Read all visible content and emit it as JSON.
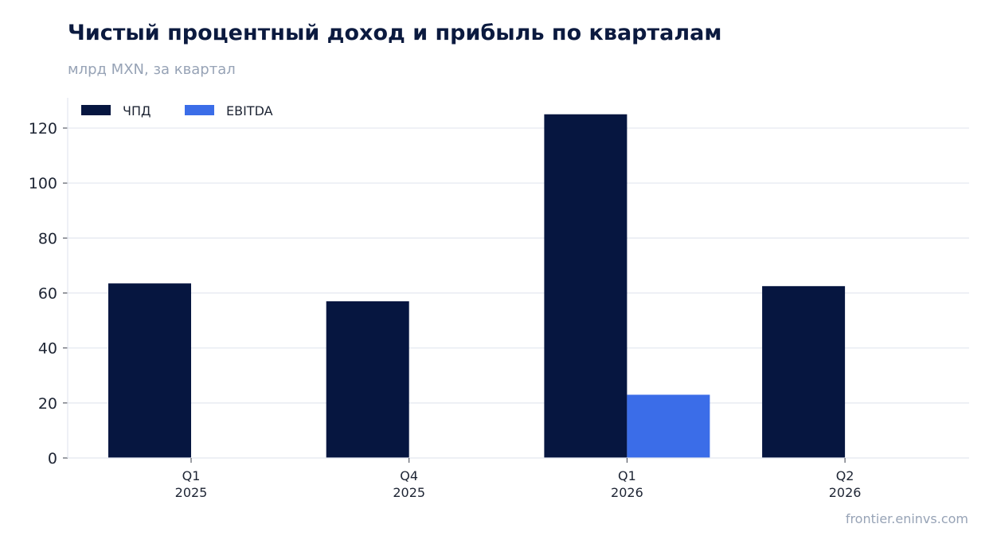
{
  "header": {
    "title": "Чистый процентный доход и прибыль по кварталам",
    "subtitle": "млрд MXN, за квартал"
  },
  "footer": {
    "source": "frontier.eninvs.com"
  },
  "chart_data": {
    "type": "bar",
    "title": "Чистый процентный доход и прибыль по кварталам",
    "subtitle": "млрд MXN, за квартал",
    "xlabel": "",
    "ylabel": "",
    "categories": [
      [
        "Q1",
        "2025"
      ],
      [
        "Q4",
        "2025"
      ],
      [
        "Q1",
        "2026"
      ],
      [
        "Q2",
        "2026"
      ]
    ],
    "series": [
      {
        "name": "ЧПД",
        "color": "#061640",
        "values": [
          63.5,
          57.0,
          125.0,
          62.5
        ]
      },
      {
        "name": "EBITDA",
        "color": "#3b6de8",
        "values": [
          null,
          null,
          23.0,
          null
        ]
      }
    ],
    "ylim": [
      0,
      131
    ],
    "yticks": [
      0,
      20,
      40,
      60,
      80,
      100,
      120
    ],
    "grid": true,
    "legend": "top-left"
  }
}
